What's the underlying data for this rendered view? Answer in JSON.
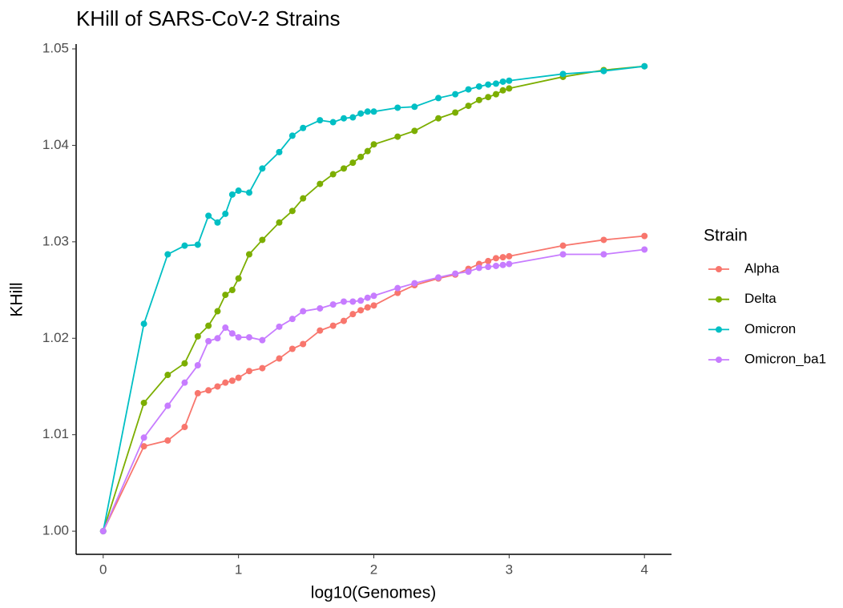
{
  "chart_data": {
    "type": "line",
    "title": "KHill of SARS-CoV-2 Strains",
    "x_label": "log10(Genomes)",
    "y_label": "KHill",
    "legend_title": "Strain",
    "legend_position": "right",
    "x": [
      0,
      0.301,
      0.477,
      0.602,
      0.699,
      0.778,
      0.845,
      0.903,
      0.954,
      1,
      1.079,
      1.176,
      1.301,
      1.398,
      1.477,
      1.602,
      1.699,
      1.778,
      1.845,
      1.903,
      1.954,
      2,
      2.176,
      2.301,
      2.477,
      2.602,
      2.699,
      2.778,
      2.845,
      2.903,
      2.954,
      3,
      3.398,
      3.699,
      4
    ],
    "series": [
      {
        "name": "Alpha",
        "color": "#F8766D",
        "values": [
          1.0,
          1.0088,
          1.0094,
          1.0108,
          1.0143,
          1.0146,
          1.015,
          1.0154,
          1.0156,
          1.0159,
          1.0166,
          1.0169,
          1.0179,
          1.0189,
          1.0194,
          1.0208,
          1.0213,
          1.0218,
          1.0225,
          1.0229,
          1.0232,
          1.0234,
          1.0247,
          1.0255,
          1.0262,
          1.0266,
          1.0272,
          1.0277,
          1.028,
          1.0283,
          1.0284,
          1.0285,
          1.0296,
          1.0302,
          1.0306
        ]
      },
      {
        "name": "Delta",
        "color": "#7CAE00",
        "values": [
          1.0,
          1.0133,
          1.0162,
          1.0174,
          1.0202,
          1.0213,
          1.0228,
          1.0245,
          1.025,
          1.0262,
          1.0287,
          1.0302,
          1.032,
          1.0332,
          1.0345,
          1.036,
          1.037,
          1.0376,
          1.0382,
          1.0388,
          1.0394,
          1.0401,
          1.0409,
          1.0415,
          1.0428,
          1.0434,
          1.0441,
          1.0447,
          1.045,
          1.0453,
          1.0457,
          1.0459,
          1.0471,
          1.0478,
          1.0482
        ]
      },
      {
        "name": "Omicron",
        "color": "#00BFC4",
        "values": [
          1.0,
          1.0215,
          1.0287,
          1.0296,
          1.0297,
          1.0327,
          1.032,
          1.0329,
          1.0349,
          1.0353,
          1.0351,
          1.0376,
          1.0393,
          1.041,
          1.0418,
          1.0426,
          1.0424,
          1.0428,
          1.0429,
          1.0433,
          1.0435,
          1.0435,
          1.0439,
          1.044,
          1.0449,
          1.0453,
          1.0458,
          1.0461,
          1.0463,
          1.0464,
          1.0466,
          1.0467,
          1.0474,
          1.0477,
          1.0482
        ]
      },
      {
        "name": "Omicron_ba1",
        "color": "#C77CFF",
        "values": [
          1.0,
          1.0097,
          1.013,
          1.0154,
          1.0172,
          1.0197,
          1.02,
          1.0211,
          1.0205,
          1.0201,
          1.0201,
          1.0198,
          1.0212,
          1.022,
          1.0228,
          1.0231,
          1.0235,
          1.0238,
          1.0238,
          1.0239,
          1.0242,
          1.0244,
          1.0252,
          1.0257,
          1.0263,
          1.0267,
          1.0269,
          1.0273,
          1.0274,
          1.0275,
          1.0276,
          1.0277,
          1.0287,
          1.0287,
          1.0292
        ]
      }
    ],
    "xlim": [
      -0.2,
      4.2
    ],
    "ylim": [
      0.9976,
      1.0505
    ],
    "xticks": [
      0,
      1,
      2,
      3,
      4
    ],
    "yticks": [
      {
        "value": 1,
        "label": "1.00"
      },
      1.01,
      1.02,
      1.03,
      1.04,
      1.05
    ]
  }
}
